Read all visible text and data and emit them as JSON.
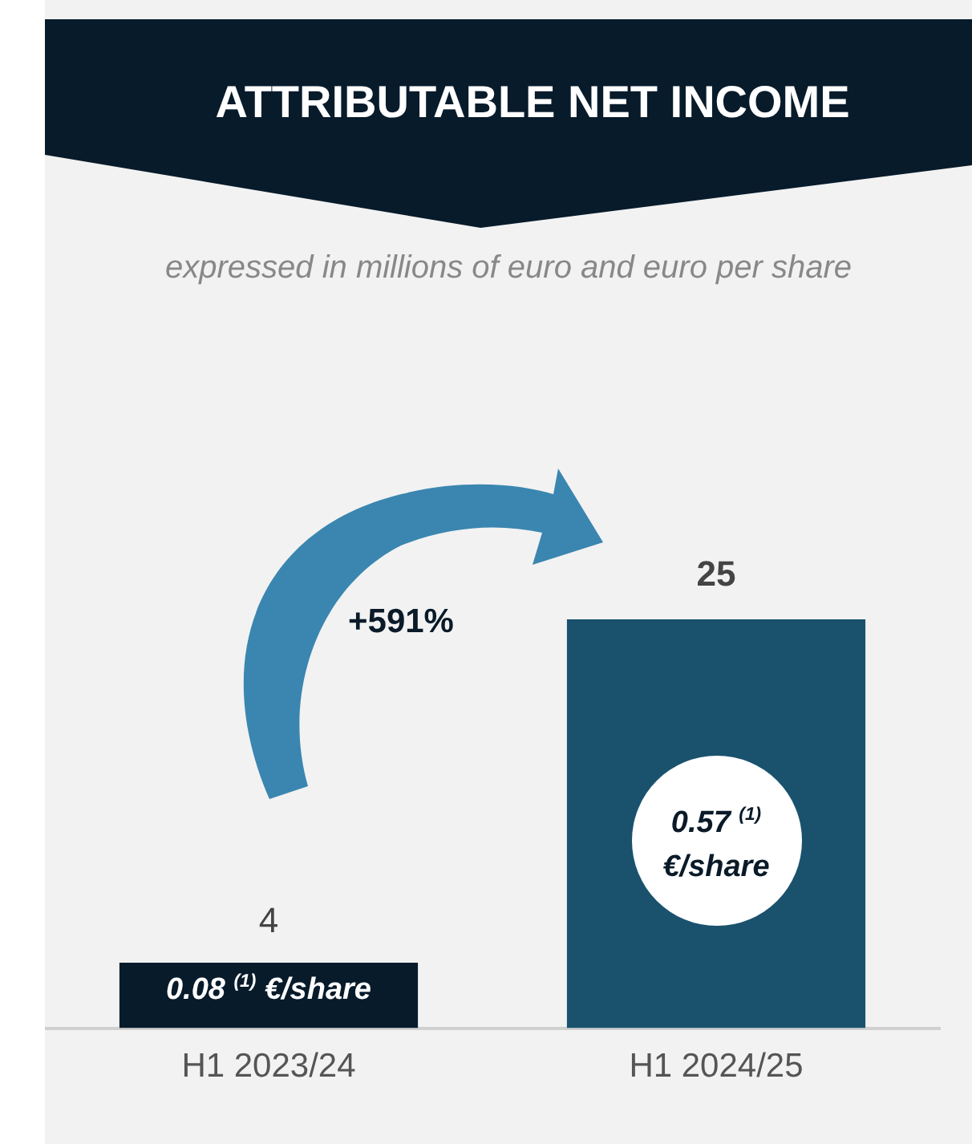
{
  "chart_data": {
    "type": "bar",
    "title": "ATTRIBUTABLE NET INCOME",
    "subtitle": "expressed in millions of euro and euro per share",
    "categories": [
      "H1 2023/24",
      "H1 2024/25"
    ],
    "values": [
      4,
      25
    ],
    "colors": [
      "#071b2b",
      "#1a526e"
    ],
    "data_labels": true,
    "grid": false,
    "legend": false,
    "annotations": [
      "+591%",
      "0.08 $^{(1)}$ €/share",
      "0.57 $^{(1)}$ €/share"
    ]
  }
}
